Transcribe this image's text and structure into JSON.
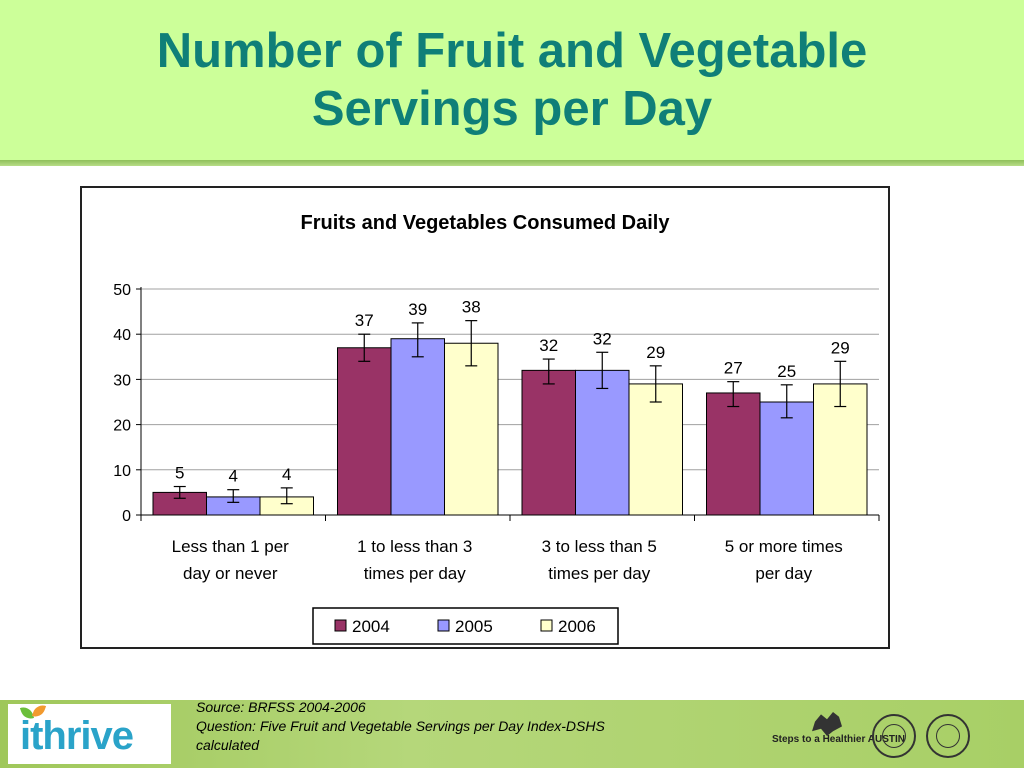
{
  "slide": {
    "title_line1": "Number of Fruit and Vegetable",
    "title_line2": "Servings per Day"
  },
  "footer": {
    "logo_text": "ithrive",
    "source_line1": "Source: BRFSS 2004-2006",
    "source_line2": "Question: Five Fruit and Vegetable Servings per Day Index-DSHS",
    "source_line3": "calculated",
    "steps_logo_text": "Steps to a Healthier AUSTIN"
  },
  "chart_data": {
    "type": "bar",
    "title": "Fruits and Vegetables Consumed Daily",
    "xlabel": "",
    "ylabel": "",
    "ylim": [
      0,
      50
    ],
    "yticks": [
      0,
      10,
      20,
      30,
      40,
      50
    ],
    "grid": true,
    "legend_position": "bottom",
    "categories": [
      [
        "Less than 1 per",
        "day or never"
      ],
      [
        "1 to less than 3",
        "times per day"
      ],
      [
        "3 to less than 5",
        "times per day"
      ],
      [
        "5 or more times",
        "per day"
      ]
    ],
    "series": [
      {
        "name": "2004",
        "color": "#993366",
        "values": [
          5,
          37,
          32,
          27
        ],
        "value_labels": [
          "5",
          "37",
          "32",
          "27"
        ],
        "error_low": [
          3.7,
          34,
          29,
          24
        ],
        "error_high": [
          6.3,
          40,
          34.5,
          29.5
        ]
      },
      {
        "name": "2005",
        "color": "#9999ff",
        "values": [
          4,
          39,
          32,
          25
        ],
        "value_labels": [
          "4",
          "39",
          "32",
          "25"
        ],
        "error_low": [
          2.8,
          35,
          28,
          21.5
        ],
        "error_high": [
          5.6,
          42.5,
          36,
          28.8
        ]
      },
      {
        "name": "2006",
        "color": "#ffffcc",
        "values": [
          4,
          38,
          29,
          29
        ],
        "value_labels": [
          "4",
          "38",
          "29",
          "29"
        ],
        "error_low": [
          2.5,
          33,
          25,
          24
        ],
        "error_high": [
          6,
          43,
          33,
          34
        ]
      }
    ]
  }
}
